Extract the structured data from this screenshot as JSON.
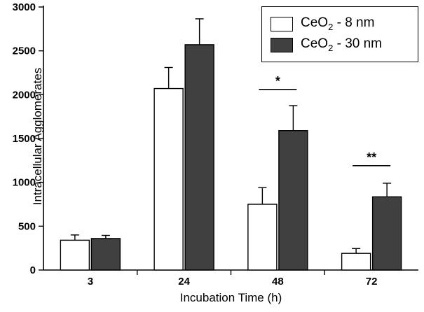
{
  "figure": {
    "xlabel": "Incubation Time (h)",
    "ylabel": "Intracellular Agglomerates"
  },
  "legend": {
    "items": [
      {
        "prefix": "CeO",
        "sub": "2",
        "suffix": " - 8 nm",
        "color": "#ffffff"
      },
      {
        "prefix": "CeO",
        "sub": "2",
        "suffix": " - 30 nm",
        "color": "#404040"
      }
    ]
  },
  "chart_data": {
    "type": "bar",
    "grouped": true,
    "title": "",
    "xlabel": "Incubation Time (h)",
    "ylabel": "Intracellular Agglomerates",
    "categories": [
      "3",
      "24",
      "48",
      "72"
    ],
    "series": [
      {
        "name": "CeO2 - 8 nm",
        "color": "#ffffff",
        "values": [
          340,
          2070,
          750,
          190
        ],
        "errors": [
          60,
          240,
          190,
          55
        ]
      },
      {
        "name": "CeO2 - 30 nm",
        "color": "#404040",
        "values": [
          360,
          2570,
          1590,
          835
        ],
        "errors": [
          35,
          295,
          285,
          155
        ]
      }
    ],
    "ylim": [
      0,
      3000
    ],
    "y_ticks": [
      0,
      500,
      1000,
      1500,
      2000,
      2500,
      3000
    ],
    "grid": false,
    "legend_position": "top-right",
    "significance": [
      {
        "category_index": 2,
        "label": "*",
        "line_y": 2060
      },
      {
        "category_index": 3,
        "label": "**",
        "line_y": 1190
      }
    ]
  }
}
